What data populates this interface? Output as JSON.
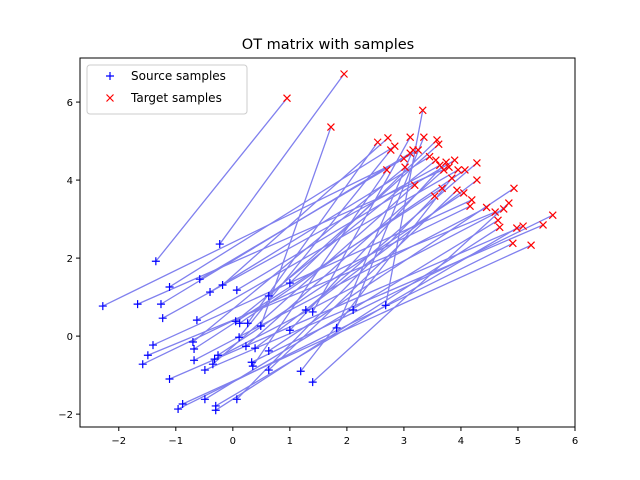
{
  "chart_data": {
    "type": "scatter",
    "title": "OT matrix with samples",
    "xlim": [
      -2.68,
      6.0
    ],
    "ylim": [
      -2.33,
      7.13
    ],
    "xticks": [
      -2,
      -1,
      0,
      1,
      2,
      3,
      4,
      5,
      6
    ],
    "yticks": [
      -2,
      0,
      2,
      4,
      6
    ],
    "grid": false,
    "legend_placement": "upper-left",
    "line_color": "#8080ee",
    "series": [
      {
        "name": "Source samples",
        "marker": "+",
        "color": "#0000ff",
        "points": [
          [
            -2.28,
            0.77
          ],
          [
            -1.35,
            1.92
          ],
          [
            -0.23,
            2.36
          ],
          [
            -1.67,
            0.82
          ],
          [
            -1.11,
            1.26
          ],
          [
            -1.26,
            0.82
          ],
          [
            -1.23,
            0.46
          ],
          [
            -0.58,
            1.46
          ],
          [
            -0.4,
            1.13
          ],
          [
            -0.18,
            1.31
          ],
          [
            0.07,
            1.18
          ],
          [
            0.63,
            1.03
          ],
          [
            1.0,
            1.36
          ],
          [
            -0.63,
            0.41
          ],
          [
            -1.4,
            -0.23
          ],
          [
            -1.49,
            -0.49
          ],
          [
            -1.58,
            -0.72
          ],
          [
            -0.7,
            -0.15
          ],
          [
            -0.68,
            -0.33
          ],
          [
            -0.68,
            -0.62
          ],
          [
            -1.11,
            -1.1
          ],
          [
            -0.49,
            -0.87
          ],
          [
            -0.35,
            -0.72
          ],
          [
            -0.32,
            -0.59
          ],
          [
            -0.26,
            -0.49
          ],
          [
            0.05,
            0.38
          ],
          [
            0.12,
            0.33
          ],
          [
            0.26,
            0.33
          ],
          [
            0.49,
            0.26
          ],
          [
            0.11,
            -0.03
          ],
          [
            0.23,
            -0.26
          ],
          [
            0.39,
            -0.31
          ],
          [
            0.33,
            -0.67
          ],
          [
            0.35,
            -0.77
          ],
          [
            0.63,
            -0.38
          ],
          [
            0.63,
            -0.87
          ],
          [
            1.0,
            0.15
          ],
          [
            1.28,
            0.67
          ],
          [
            1.4,
            0.62
          ],
          [
            1.82,
            0.21
          ],
          [
            2.11,
            0.67
          ],
          [
            2.68,
            0.79
          ],
          [
            1.19,
            -0.9
          ],
          [
            1.4,
            -1.18
          ],
          [
            -0.96,
            -1.87
          ],
          [
            -0.88,
            -1.74
          ],
          [
            -0.49,
            -1.62
          ],
          [
            -0.3,
            -1.79
          ],
          [
            -0.3,
            -1.9
          ],
          [
            0.07,
            -1.62
          ]
        ]
      },
      {
        "name": "Target samples",
        "marker": "x",
        "color": "#ff0000",
        "points": [
          [
            1.95,
            6.72
          ],
          [
            0.95,
            6.1
          ],
          [
            1.72,
            5.36
          ],
          [
            3.33,
            5.79
          ],
          [
            3.11,
            5.1
          ],
          [
            2.72,
            5.08
          ],
          [
            2.54,
            4.97
          ],
          [
            2.84,
            4.87
          ],
          [
            2.77,
            4.77
          ],
          [
            3.35,
            5.1
          ],
          [
            3.58,
            5.03
          ],
          [
            3.61,
            4.92
          ],
          [
            3.16,
            4.77
          ],
          [
            3.11,
            4.69
          ],
          [
            3.25,
            4.77
          ],
          [
            2.7,
            4.26
          ],
          [
            3.02,
            4.33
          ],
          [
            3.56,
            4.51
          ],
          [
            3.63,
            4.38
          ],
          [
            3.74,
            4.46
          ],
          [
            3.89,
            4.51
          ],
          [
            3.7,
            4.26
          ],
          [
            3.79,
            4.33
          ],
          [
            3.95,
            4.26
          ],
          [
            4.07,
            4.26
          ],
          [
            4.28,
            4.44
          ],
          [
            4.28,
            4.0
          ],
          [
            3.84,
            4.05
          ],
          [
            3.19,
            3.87
          ],
          [
            3.67,
            3.79
          ],
          [
            3.54,
            3.59
          ],
          [
            3.93,
            3.74
          ],
          [
            4.05,
            3.67
          ],
          [
            4.19,
            3.49
          ],
          [
            4.16,
            3.33
          ],
          [
            4.93,
            3.79
          ],
          [
            4.6,
            3.18
          ],
          [
            4.84,
            3.41
          ],
          [
            4.75,
            3.26
          ],
          [
            4.65,
            2.97
          ],
          [
            4.68,
            2.79
          ],
          [
            4.98,
            2.77
          ],
          [
            5.09,
            2.82
          ],
          [
            5.61,
            3.1
          ],
          [
            5.44,
            2.85
          ],
          [
            4.91,
            2.38
          ],
          [
            5.23,
            2.33
          ],
          [
            3.45,
            4.6
          ],
          [
            3.0,
            4.55
          ],
          [
            4.45,
            3.3
          ]
        ]
      }
    ]
  }
}
